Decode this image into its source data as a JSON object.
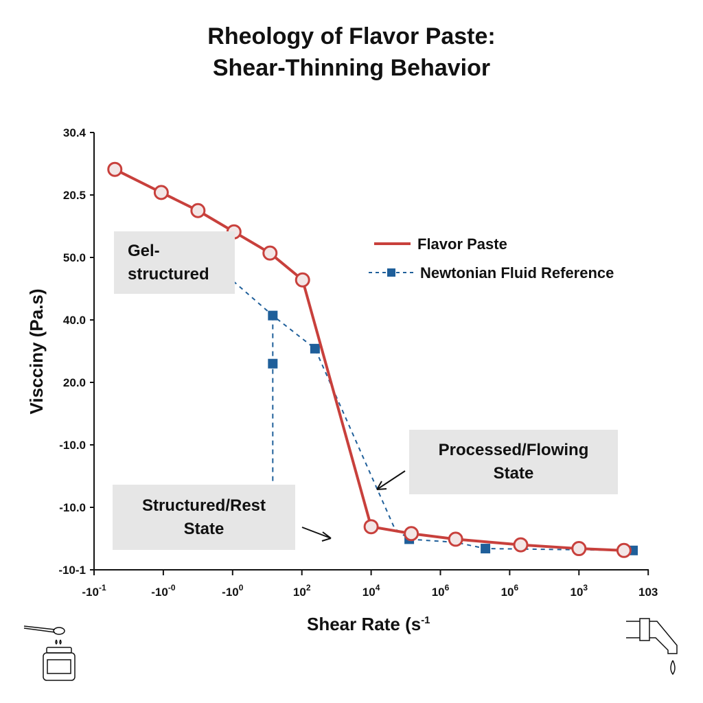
{
  "chart_data": {
    "type": "line",
    "title": [
      "Rheology of Flavor Paste:",
      "Shear-Thinning Behavior"
    ],
    "xlabel": "Shear Rate (s",
    "xlabel_superscript": "-1",
    "ylabel": "Viscciny (Pa.s)",
    "x_tick_labels": [
      [
        "-10",
        "-1"
      ],
      [
        "-10",
        "-0"
      ],
      [
        "-10",
        "0"
      ],
      [
        "10",
        "2"
      ],
      [
        "10",
        "4"
      ],
      [
        "10",
        "6"
      ],
      [
        "10",
        "6"
      ],
      [
        "10",
        "3"
      ],
      [
        "103",
        ""
      ]
    ],
    "y_tick_labels": [
      "-10-1",
      "-10.0",
      "-10.0",
      "20.0",
      "40.0",
      "50.0",
      "20.5",
      "30.4"
    ],
    "axis_note": "x and y values are given as positions along the printed tick sequences (tick index), since tick labels are non-monotonic",
    "legend_position": "top-right",
    "grid": false,
    "series": [
      {
        "name": "Flavor Paste",
        "color": "#c8403c",
        "style": "solid",
        "marker": "open-circle",
        "x": [
          0.3,
          0.97,
          1.5,
          2.02,
          2.54,
          3.01,
          4.0,
          4.58,
          5.22,
          6.16,
          7.0,
          7.65
        ],
        "y": [
          6.41,
          6.04,
          5.75,
          5.41,
          5.07,
          4.64,
          0.69,
          0.58,
          0.49,
          0.4,
          0.34,
          0.31
        ]
      },
      {
        "name": "Newtonian Fluid Reference",
        "color": "#1f5f9a",
        "style": "dashed",
        "marker": "square",
        "x": [
          2.01,
          2.58,
          3.19,
          4.34,
          4.55,
          5.22,
          5.65,
          7.78
        ],
        "y": [
          4.62,
          4.07,
          3.54,
          0.66,
          0.49,
          0.44,
          0.34,
          0.31
        ],
        "markers_at": [
          1,
          2,
          4,
          6,
          7
        ],
        "branch": {
          "x": [
            2.58,
            2.58
          ],
          "y": [
            4.07,
            0.38
          ],
          "marker_y": 3.3
        }
      }
    ],
    "annotations": [
      {
        "text": "Gel-\nstructured"
      },
      {
        "text": "Processed/Flowing\nState"
      },
      {
        "text": "Structured/Rest\nState"
      }
    ]
  },
  "icons": {
    "left": "spoon-jar-icon",
    "right": "faucet-drip-icon"
  }
}
